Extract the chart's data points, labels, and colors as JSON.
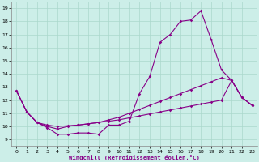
{
  "xlabel": "Windchill (Refroidissement éolien,°C)",
  "bg_color": "#cceee8",
  "line_color": "#880088",
  "xlim": [
    -0.5,
    23.5
  ],
  "ylim": [
    8.5,
    19.5
  ],
  "xticks": [
    0,
    1,
    2,
    3,
    4,
    5,
    6,
    7,
    8,
    9,
    10,
    11,
    12,
    13,
    14,
    15,
    16,
    17,
    18,
    19,
    20,
    21,
    22,
    23
  ],
  "yticks": [
    9,
    10,
    11,
    12,
    13,
    14,
    15,
    16,
    17,
    18,
    19
  ],
  "series": [
    {
      "x": [
        0,
        1,
        2,
        3,
        4,
        5,
        6,
        7,
        8,
        9,
        10,
        11,
        12,
        13,
        14,
        15,
        16,
        17,
        18,
        19,
        20,
        21,
        22,
        23
      ],
      "y": [
        12.7,
        11.1,
        10.3,
        9.9,
        9.4,
        9.4,
        9.5,
        9.5,
        9.4,
        10.1,
        10.1,
        10.4,
        12.5,
        13.8,
        16.4,
        17.0,
        18.0,
        18.1,
        18.8,
        16.6,
        14.3,
        13.5,
        12.2,
        11.6
      ]
    },
    {
      "x": [
        0,
        1,
        2,
        3,
        4,
        5,
        6,
        7,
        8,
        9,
        10,
        11,
        12,
        13,
        14,
        15,
        16,
        17,
        18,
        19,
        20,
        21,
        22,
        23
      ],
      "y": [
        12.7,
        11.1,
        10.3,
        10.0,
        9.8,
        10.0,
        10.1,
        10.2,
        10.3,
        10.5,
        10.7,
        11.0,
        11.3,
        11.6,
        11.9,
        12.2,
        12.5,
        12.8,
        13.1,
        13.4,
        13.7,
        13.5,
        12.2,
        11.6
      ]
    },
    {
      "x": [
        0,
        1,
        2,
        3,
        4,
        5,
        6,
        7,
        8,
        9,
        10,
        11,
        12,
        13,
        14,
        15,
        16,
        17,
        18,
        19,
        20,
        21,
        22,
        23
      ],
      "y": [
        12.7,
        11.1,
        10.3,
        10.1,
        10.0,
        10.05,
        10.1,
        10.2,
        10.3,
        10.4,
        10.5,
        10.65,
        10.8,
        10.95,
        11.1,
        11.25,
        11.4,
        11.55,
        11.7,
        11.85,
        12.0,
        13.5,
        12.2,
        11.6
      ]
    }
  ]
}
